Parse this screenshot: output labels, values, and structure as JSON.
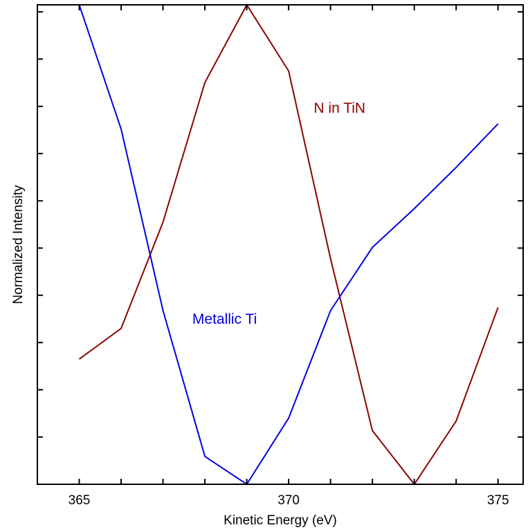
{
  "chart_data": {
    "type": "line",
    "xlabel": "Kinetic Energy (eV)",
    "ylabel": "Normalized Intensity",
    "xlim": [
      364.0,
      375.6
    ],
    "ylim": [
      0,
      1
    ],
    "xticks": [
      365,
      366,
      367,
      368,
      369,
      370,
      371,
      372,
      373,
      374,
      375
    ],
    "xtick_labels": [
      "365",
      "",
      "",
      "",
      "",
      "370",
      "",
      "",
      "",
      "",
      "375"
    ],
    "yticks": [
      0.0985,
      0.1971,
      0.2956,
      0.3942,
      0.4927,
      0.5912,
      0.6898,
      0.7883,
      0.8869,
      0.9854
    ],
    "grid": false,
    "legend": "none",
    "x": [
      365,
      366,
      367,
      368,
      369,
      370,
      371,
      372,
      373,
      374,
      375
    ],
    "series": [
      {
        "name": "N in TiN",
        "color": "#8b0000",
        "values": [
          0.261,
          0.325,
          0.547,
          0.838,
          1.0,
          0.862,
          0.471,
          0.112,
          0.0,
          0.132,
          0.369
        ]
      },
      {
        "name": "Metallic Ti",
        "color": "#0000e0",
        "values": [
          1.0,
          0.741,
          0.362,
          0.058,
          0.0,
          0.138,
          0.362,
          0.494,
          0.575,
          0.661,
          0.752
        ]
      }
    ],
    "annotations": [
      {
        "text": "N in TiN",
        "x": 370.6,
        "y": 0.775,
        "color": "#8b0000"
      },
      {
        "text": "Metallic Ti",
        "x": 367.7,
        "y": 0.335,
        "color": "#0000e0"
      }
    ]
  }
}
